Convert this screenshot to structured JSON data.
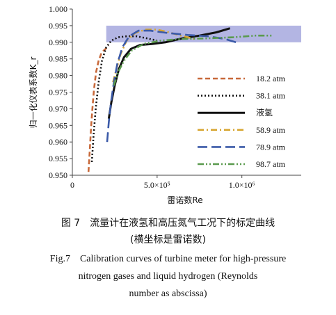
{
  "chart_data": {
    "type": "line",
    "xlabel": "雷诺数Re",
    "ylabel": "归一化仪表系数K_r",
    "xlim": [
      0,
      1350000
    ],
    "ylim": [
      0.95,
      1.0
    ],
    "x_ticks": [
      {
        "value": 0,
        "label": "0"
      },
      {
        "value": 500000,
        "label": "5.0×10⁵"
      },
      {
        "value": 1000000,
        "label": "1.0×10⁶"
      }
    ],
    "y_ticks": [
      {
        "value": 0.95,
        "label": "0.950"
      },
      {
        "value": 0.955,
        "label": "0.955"
      },
      {
        "value": 0.96,
        "label": "0.960"
      },
      {
        "value": 0.965,
        "label": "0.965"
      },
      {
        "value": 0.97,
        "label": "0.970"
      },
      {
        "value": 0.975,
        "label": "0.975"
      },
      {
        "value": 0.98,
        "label": "0.980"
      },
      {
        "value": 0.985,
        "label": "0.985"
      },
      {
        "value": 0.99,
        "label": "0.990"
      },
      {
        "value": 0.995,
        "label": "0.995"
      },
      {
        "value": 1.0,
        "label": "1.000"
      }
    ],
    "band": {
      "y_min": 0.99,
      "y_max": 0.995,
      "x_min": 200000,
      "x_max": 1350000,
      "color": "#b3b5e3"
    },
    "legend_position": "right",
    "series": [
      {
        "name": "18.2 atm",
        "color": "#c8693a",
        "dash": "dash",
        "x": [
          95000,
          102000,
          110000,
          118000,
          128000,
          140000,
          155000,
          170000,
          185000,
          200000,
          215000
        ],
        "y": [
          0.951,
          0.957,
          0.964,
          0.97,
          0.976,
          0.981,
          0.9845,
          0.9865,
          0.9875,
          0.9882,
          0.989
        ]
      },
      {
        "name": "38.1 atm",
        "color": "#111111",
        "dash": "dot",
        "x": [
          115000,
          125000,
          138000,
          155000,
          175000,
          200000,
          230000,
          270000,
          320000,
          380000,
          440000,
          500000
        ],
        "y": [
          0.954,
          0.962,
          0.97,
          0.978,
          0.9845,
          0.9885,
          0.9905,
          0.9915,
          0.9918,
          0.9918,
          0.9912,
          0.9905
        ]
      },
      {
        "name": "液氢",
        "color": "#111111",
        "dash": "solid",
        "x": [
          215000,
          230000,
          250000,
          275000,
          305000,
          345000,
          400000,
          470000,
          550000,
          650000,
          750000,
          850000,
          930000
        ],
        "y": [
          0.967,
          0.972,
          0.977,
          0.982,
          0.9855,
          0.988,
          0.9892,
          0.9895,
          0.99,
          0.9912,
          0.992,
          0.993,
          0.9942
        ]
      },
      {
        "name": "58.9 atm",
        "color": "#d7a530",
        "dash": "dashdot",
        "x": [
          240000,
          260000,
          285000,
          320000,
          370000,
          430000,
          500000,
          570000,
          640000,
          720000
        ],
        "y": [
          0.978,
          0.982,
          0.9865,
          0.9905,
          0.9928,
          0.9938,
          0.9938,
          0.993,
          0.992,
          0.991
        ]
      },
      {
        "name": "78.9 atm",
        "color": "#3b5aa8",
        "dash": "longdash",
        "x": [
          205000,
          215000,
          228000,
          245000,
          265000,
          295000,
          335000,
          390000,
          460000,
          560000,
          680000,
          800000,
          900000,
          980000
        ],
        "y": [
          0.96,
          0.966,
          0.972,
          0.978,
          0.9835,
          0.9885,
          0.9918,
          0.9935,
          0.9935,
          0.9928,
          0.9922,
          0.9918,
          0.991,
          0.9898
        ]
      },
      {
        "name": "98.7 atm",
        "color": "#5a9a4e",
        "dash": "dashdotdot",
        "x": [
          245000,
          270000,
          305000,
          350000,
          420000,
          520000,
          650000,
          800000,
          950000,
          1080000,
          1180000
        ],
        "y": [
          0.977,
          0.981,
          0.9845,
          0.9875,
          0.9895,
          0.9905,
          0.991,
          0.9912,
          0.9915,
          0.992,
          0.992
        ]
      }
    ]
  },
  "caption": {
    "zh_line1": "图 7　流量计在液氢和高压氮气工况下的标定曲线",
    "zh_line2": "(横坐标是雷诺数)",
    "en_line1": "Fig.7　Calibration curves of turbine meter for high-pressure",
    "en_line2": "nitrogen gases and liquid hydrogen (Reynolds",
    "en_line3": "number as abscissa)"
  }
}
